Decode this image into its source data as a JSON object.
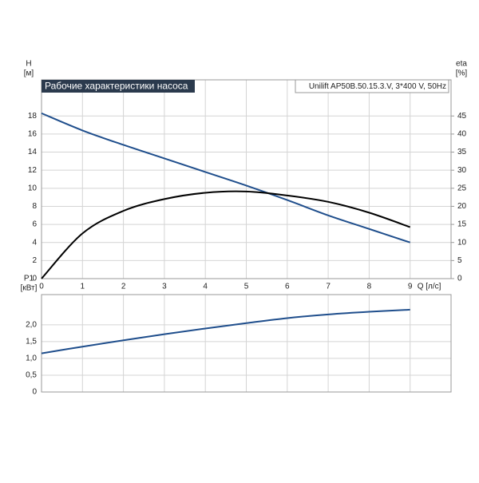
{
  "chart_data": [
    {
      "type": "line",
      "title": "Рабочие характеристики насоса",
      "subtitle": "Unilift AP50B.50.15.3.V, 3*400 V, 50Hz",
      "y_label": "H",
      "y_unit": "[м]",
      "y2_label": "eta",
      "y2_unit": "[%]",
      "x_label": "Q [л/с]",
      "x": [
        0,
        1,
        2,
        3,
        4,
        5,
        6,
        7,
        8,
        9
      ],
      "xlim": [
        0,
        10
      ],
      "xticks": [
        0,
        1,
        2,
        3,
        4,
        5,
        6,
        7,
        8,
        9
      ],
      "show_x_tick_labels": true,
      "ylim": [
        0,
        22
      ],
      "yticks": [
        0,
        2,
        4,
        6,
        8,
        10,
        12,
        14,
        16,
        18
      ],
      "y2lim": [
        0,
        55
      ],
      "y2ticks": [
        0,
        5,
        10,
        15,
        20,
        25,
        30,
        35,
        40,
        45
      ],
      "grid": true,
      "series": [
        {
          "color": "#1f4e8c",
          "values": [
            18.3,
            16.4,
            14.8,
            13.3,
            11.8,
            10.3,
            8.7,
            7.0,
            5.5,
            4.0
          ]
        },
        {
          "color": "#000000",
          "axis": "y2",
          "values": [
            0,
            12.5,
            18.75,
            22,
            23.75,
            24.1,
            23,
            21.25,
            18.25,
            14.25
          ]
        }
      ]
    },
    {
      "type": "line",
      "y_label": "P1",
      "y_unit": "[кВт]",
      "x": [
        0,
        1,
        2,
        3,
        4,
        5,
        6,
        7,
        8,
        9
      ],
      "xlim": [
        0,
        10
      ],
      "xticks": [
        0,
        1,
        2,
        3,
        4,
        5,
        6,
        7,
        8,
        9
      ],
      "show_x_tick_labels": false,
      "ylim": [
        0,
        2.9
      ],
      "yticks": [
        0,
        {
          "value": 0.5,
          "label": "0,5"
        },
        {
          "value": 1.0,
          "label": "1,0"
        },
        {
          "value": 1.5,
          "label": "1,5"
        },
        {
          "value": 2.0,
          "label": "2,0"
        }
      ],
      "grid": true,
      "series": [
        {
          "color": "#1f4e8c",
          "values": [
            1.15,
            1.35,
            1.54,
            1.72,
            1.89,
            2.05,
            2.2,
            2.31,
            2.39,
            2.45
          ]
        }
      ]
    }
  ]
}
